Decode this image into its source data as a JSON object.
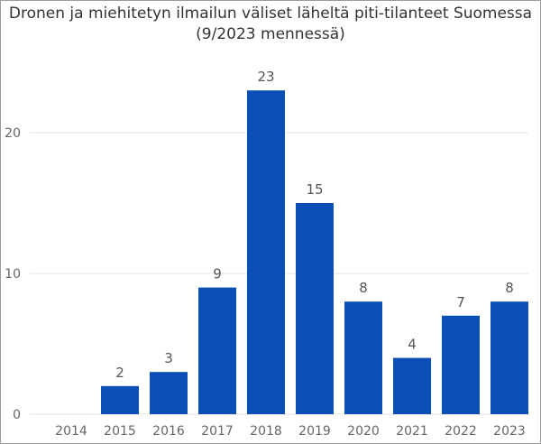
{
  "chart_data": {
    "type": "bar",
    "title_line1": "Dronen ja miehitetyn ilmailun väliset läheltä piti-tilanteet Suomessa",
    "title_line2": "(9/2023 mennessä)",
    "categories": [
      "2014",
      "2015",
      "2016",
      "2017",
      "2018",
      "2019",
      "2020",
      "2021",
      "2022",
      "2023"
    ],
    "values": [
      0,
      2,
      3,
      9,
      23,
      15,
      8,
      4,
      7,
      8
    ],
    "data_labels": [
      "",
      "2",
      "3",
      "9",
      "23",
      "15",
      "8",
      "4",
      "7",
      "8"
    ],
    "xlabel": "",
    "ylabel": "",
    "ylim": [
      0,
      25
    ],
    "yticks": [
      0,
      10,
      20
    ],
    "ytick_labels": [
      "0",
      "10",
      "20"
    ],
    "grid": true,
    "bar_color": "#0a50b4",
    "grid_color": "#e6e6e6"
  }
}
